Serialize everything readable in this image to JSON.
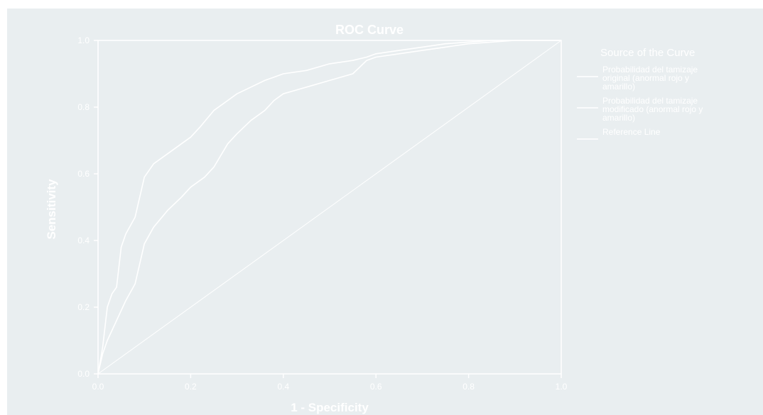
{
  "chart_data": {
    "type": "line",
    "title": "ROC Curve",
    "xlabel": "1 - Specificity",
    "ylabel": "Sensitivity",
    "xlim": [
      0,
      1
    ],
    "ylim": [
      0,
      1
    ],
    "x_ticks": [
      "0.0",
      "0.2",
      "0.4",
      "0.6",
      "0.8",
      "1.0"
    ],
    "y_ticks": [
      "0.0",
      "0.2",
      "0.4",
      "0.6",
      "0.8",
      "1.0"
    ],
    "legend_title": "Source of the Curve",
    "legend_position": "right",
    "grid": false,
    "series": [
      {
        "name": "Probabilidad del tamizaje original (anormal rojo y amarillo)",
        "color": "#ffffff",
        "x": [
          0,
          0.01,
          0.02,
          0.03,
          0.04,
          0.045,
          0.05,
          0.06,
          0.08,
          0.09,
          0.1,
          0.12,
          0.15,
          0.18,
          0.2,
          0.22,
          0.25,
          0.28,
          0.3,
          0.33,
          0.36,
          0.38,
          0.4,
          0.45,
          0.5,
          0.55,
          0.58,
          0.6,
          0.65,
          0.7,
          0.75,
          0.8,
          0.85,
          0.9,
          1.0
        ],
        "y": [
          0,
          0.08,
          0.2,
          0.24,
          0.26,
          0.32,
          0.38,
          0.42,
          0.47,
          0.53,
          0.59,
          0.63,
          0.66,
          0.69,
          0.71,
          0.74,
          0.79,
          0.82,
          0.84,
          0.86,
          0.88,
          0.89,
          0.9,
          0.91,
          0.93,
          0.94,
          0.95,
          0.96,
          0.97,
          0.98,
          0.99,
          0.995,
          1.0,
          1.0,
          1.0
        ]
      },
      {
        "name": "Probabilidad del tamizaje modificado (anormal rojo y amarillo)",
        "color": "#ffffff",
        "x": [
          0,
          0.01,
          0.02,
          0.04,
          0.05,
          0.06,
          0.08,
          0.09,
          0.1,
          0.12,
          0.15,
          0.18,
          0.2,
          0.23,
          0.25,
          0.28,
          0.3,
          0.33,
          0.36,
          0.38,
          0.4,
          0.45,
          0.5,
          0.55,
          0.58,
          0.6,
          0.65,
          0.7,
          0.75,
          0.8,
          0.85,
          0.9,
          1.0
        ],
        "y": [
          0,
          0.06,
          0.1,
          0.16,
          0.19,
          0.22,
          0.27,
          0.33,
          0.39,
          0.44,
          0.49,
          0.53,
          0.56,
          0.59,
          0.62,
          0.69,
          0.72,
          0.76,
          0.79,
          0.82,
          0.84,
          0.86,
          0.88,
          0.9,
          0.94,
          0.95,
          0.96,
          0.97,
          0.98,
          0.99,
          0.995,
          1.0,
          1.0
        ]
      },
      {
        "name": "Reference Line",
        "color": "#ffffff",
        "x": [
          0,
          1
        ],
        "y": [
          0,
          1
        ]
      }
    ]
  }
}
